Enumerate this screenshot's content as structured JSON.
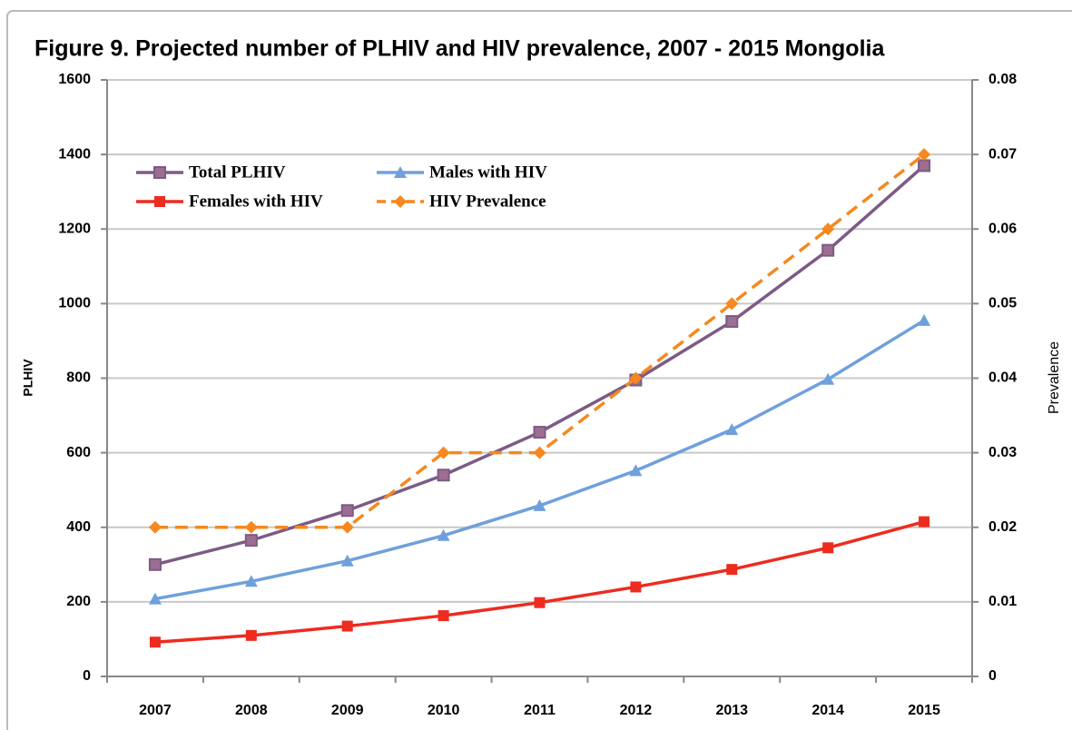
{
  "chart_data": {
    "type": "line",
    "title": "Figure 9. Projected number of PLHIV and HIV prevalence, 2007 - 2015 Mongolia",
    "ylabel": "PLHIV",
    "y2label": "Prevalence",
    "categories": [
      "2007",
      "2008",
      "2009",
      "2010",
      "2011",
      "2012",
      "2013",
      "2014",
      "2015"
    ],
    "series": [
      {
        "name": "Total PLHIV",
        "color": "#7d5b85",
        "marker": "square",
        "values": [
          300,
          365,
          445,
          540,
          655,
          795,
          952,
          1143,
          1370
        ]
      },
      {
        "name": "Males with HIV",
        "color": "#6fa0dc",
        "marker": "triangle",
        "values": [
          208,
          255,
          310,
          378,
          458,
          552,
          662,
          797,
          955
        ]
      },
      {
        "name": "Females with HIV",
        "color": "#ee2b1f",
        "marker": "square",
        "values": [
          92,
          110,
          135,
          163,
          198,
          240,
          287,
          345,
          415
        ]
      },
      {
        "name": "HIV Prevalence",
        "color": "#f5891f",
        "marker": "diamond",
        "dashed": true,
        "axis": "y2",
        "values": [
          0.02,
          0.02,
          0.02,
          0.03,
          0.03,
          0.04,
          0.05,
          0.06,
          0.07
        ]
      }
    ],
    "ylim": [
      0,
      1600
    ],
    "yticks": [
      0,
      200,
      400,
      600,
      800,
      1000,
      1200,
      1400,
      1600
    ],
    "y2lim": [
      0,
      0.08
    ],
    "y2ticks": [
      0,
      0.01,
      0.02,
      0.03,
      0.04,
      0.05,
      0.06,
      0.07,
      0.08
    ],
    "grid": true,
    "legend": "upper left"
  }
}
